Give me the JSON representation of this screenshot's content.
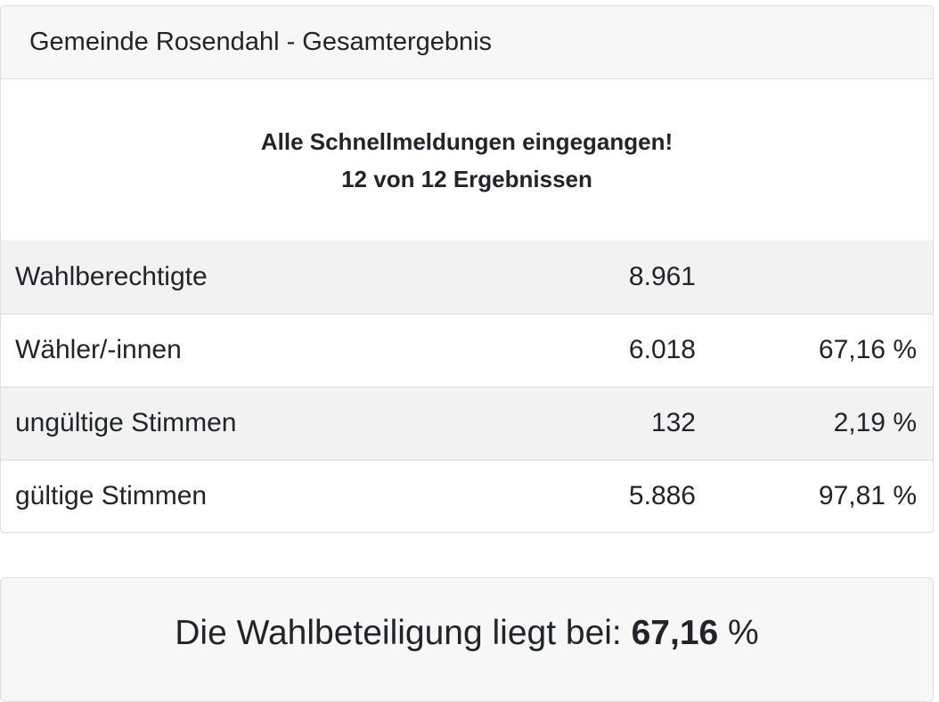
{
  "header": {
    "title": "Gemeinde Rosendahl - Gesamtergebnis"
  },
  "status": {
    "line1": "Alle Schnellmeldungen eingegangen!",
    "line2": "12 von 12 Ergebnissen"
  },
  "rows": [
    {
      "label": "Wahlberechtigte",
      "count": "8.961",
      "percent": ""
    },
    {
      "label": "Wähler/-innen",
      "count": "6.018",
      "percent": "67,16 %"
    },
    {
      "label": "ungültige Stimmen",
      "count": "132",
      "percent": "2,19 %"
    },
    {
      "label": "gültige Stimmen",
      "count": "5.886",
      "percent": "97,81 %"
    }
  ],
  "turnout": {
    "prefix": "Die Wahlbeteiligung liegt bei: ",
    "value": "67,16",
    "suffix": " %"
  }
}
